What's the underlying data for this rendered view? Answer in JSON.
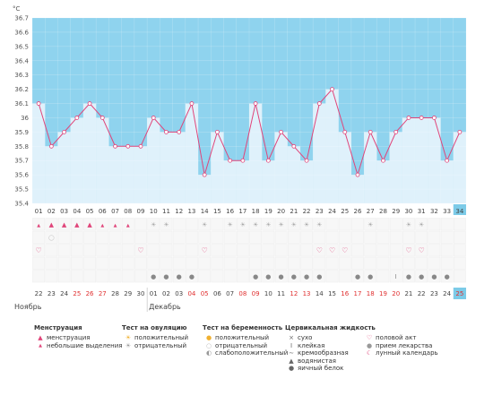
{
  "chart_data": {
    "type": "bar",
    "ylabel": "°C",
    "ylim": [
      35.4,
      36.7
    ],
    "yticks": [
      "36.7",
      "36.6",
      "36.5",
      "36.4",
      "36.3",
      "36.2",
      "36.1",
      "36",
      "35.9",
      "35.8",
      "35.7",
      "35.6",
      "35.5",
      "35.4"
    ],
    "cycle_days": [
      "01",
      "02",
      "03",
      "04",
      "05",
      "06",
      "07",
      "08",
      "09",
      "10",
      "11",
      "12",
      "13",
      "14",
      "15",
      "16",
      "17",
      "18",
      "19",
      "20",
      "21",
      "22",
      "23",
      "24",
      "25",
      "26",
      "27",
      "28",
      "29",
      "30",
      "31",
      "32",
      "33",
      "34"
    ],
    "values": [
      36.1,
      35.8,
      35.9,
      36.0,
      36.1,
      36.0,
      35.8,
      35.8,
      35.8,
      36.0,
      35.9,
      35.9,
      36.1,
      35.6,
      35.9,
      35.7,
      35.7,
      36.1,
      35.7,
      35.9,
      35.8,
      35.7,
      36.1,
      36.2,
      35.9,
      35.6,
      35.9,
      35.7,
      35.9,
      36.0,
      36.0,
      36.0,
      35.7,
      35.9
    ],
    "dates": [
      "22",
      "23",
      "24",
      "25",
      "26",
      "27",
      "28",
      "29",
      "30",
      "01",
      "02",
      "03",
      "04",
      "05",
      "06",
      "07",
      "08",
      "09",
      "10",
      "11",
      "12",
      "13",
      "14",
      "15",
      "16",
      "17",
      "18",
      "19",
      "20",
      "21",
      "22",
      "23",
      "24",
      "25"
    ],
    "red_date_index": [
      3,
      4,
      5,
      12,
      13,
      16,
      17,
      20,
      21,
      24,
      25,
      26,
      27,
      28,
      33
    ],
    "month_labels": {
      "nov": "Ноябрь",
      "dec": "Декабрь"
    },
    "current_day_index": 33,
    "colors": {
      "plot_bg": "#8fd3ee",
      "bar": "#dff1fb",
      "line": "#e0457a",
      "marker": "#ffffff",
      "highlight": "#7ccbe8"
    }
  },
  "legend": {
    "menstruation": {
      "title": "Менструация",
      "items": [
        "менструация",
        "небольшие выделения"
      ]
    },
    "ovulation": {
      "title": "Тест на овуляцию",
      "items": [
        "положительный",
        "отрицательный"
      ]
    },
    "pregnancy": {
      "title": "Тест на беременность",
      "items": [
        "положительный",
        "отрицательный",
        "слабоположительный"
      ]
    },
    "fluid": {
      "title": "Цервикальная жидкость",
      "items": [
        "сухо",
        "клейкая",
        "кремообразная",
        "водянистая",
        "яичный белок"
      ]
    },
    "other": {
      "items": [
        "половой акт",
        "прием лекарства",
        "лунный календарь"
      ]
    }
  },
  "icons": {
    "menstruation": "drop-icon",
    "ovulation": "sun-icon",
    "heart": "heart-icon",
    "fluid": "fluid-icon",
    "moon": "moon-icon"
  }
}
